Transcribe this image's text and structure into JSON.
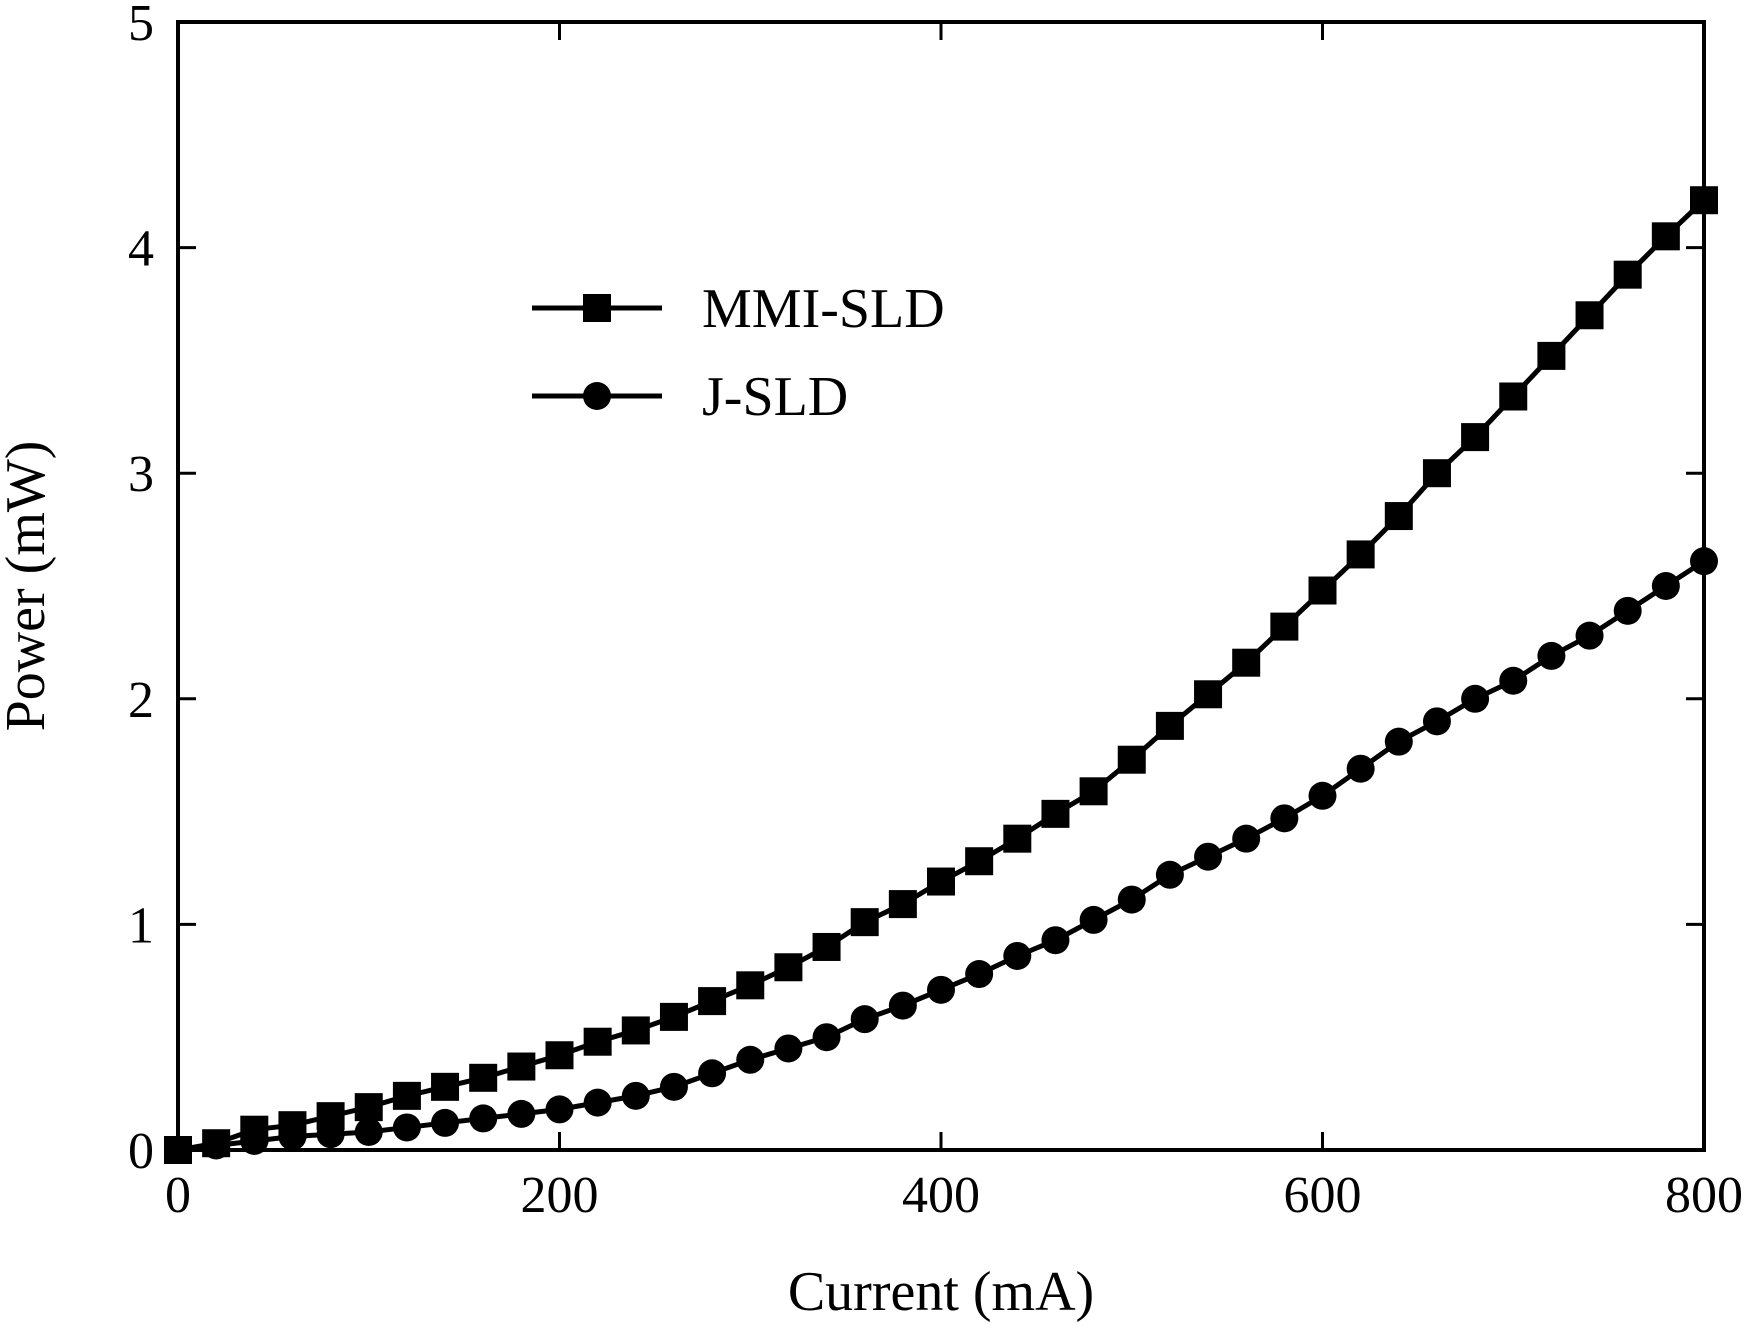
{
  "chart_data": {
    "type": "line",
    "xlabel": "Current (mA)",
    "ylabel": "Power (mW)",
    "xlim": [
      0,
      800
    ],
    "ylim": [
      0,
      5
    ],
    "xticks": [
      "0",
      "200",
      "400",
      "600",
      "800"
    ],
    "yticks": [
      "0",
      "1",
      "2",
      "3",
      "4",
      "5"
    ],
    "grid": false,
    "legend_position": "upper-left",
    "x": [
      0,
      20,
      40,
      60,
      80,
      100,
      120,
      140,
      160,
      180,
      200,
      220,
      240,
      260,
      280,
      300,
      320,
      340,
      360,
      380,
      400,
      420,
      440,
      460,
      480,
      500,
      520,
      540,
      560,
      580,
      600,
      620,
      640,
      660,
      680,
      700,
      720,
      740,
      760,
      780,
      800
    ],
    "series": [
      {
        "name": "MMI-SLD",
        "marker": "square",
        "values": [
          0.0,
          0.03,
          0.09,
          0.11,
          0.15,
          0.19,
          0.24,
          0.28,
          0.32,
          0.37,
          0.42,
          0.48,
          0.53,
          0.59,
          0.66,
          0.73,
          0.81,
          0.9,
          1.01,
          1.09,
          1.19,
          1.28,
          1.38,
          1.49,
          1.59,
          1.73,
          1.88,
          2.02,
          2.16,
          2.32,
          2.48,
          2.64,
          2.81,
          3.0,
          3.16,
          3.34,
          3.52,
          3.7,
          3.88,
          4.05,
          4.21
        ]
      },
      {
        "name": "J-SLD",
        "marker": "circle",
        "values": [
          0.0,
          0.02,
          0.04,
          0.06,
          0.07,
          0.08,
          0.1,
          0.12,
          0.14,
          0.16,
          0.18,
          0.21,
          0.24,
          0.28,
          0.34,
          0.4,
          0.45,
          0.5,
          0.58,
          0.64,
          0.71,
          0.78,
          0.86,
          0.93,
          1.02,
          1.11,
          1.22,
          1.3,
          1.38,
          1.47,
          1.57,
          1.69,
          1.81,
          1.9,
          2.0,
          2.08,
          2.19,
          2.28,
          2.39,
          2.5,
          2.61
        ]
      }
    ]
  }
}
